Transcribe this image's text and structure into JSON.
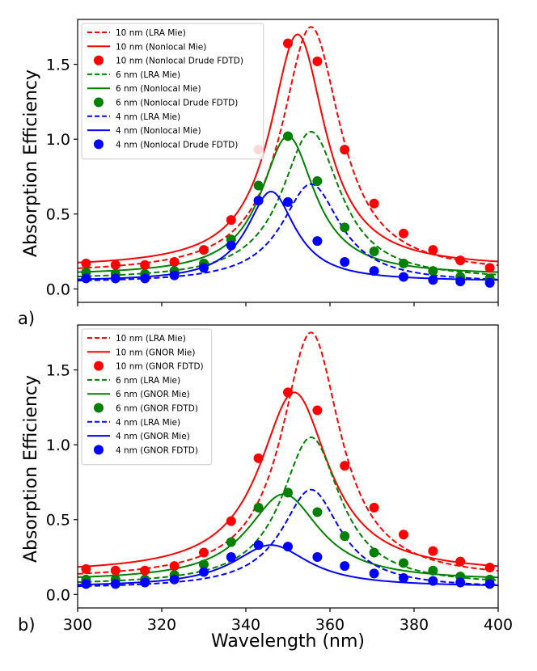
{
  "figure": {
    "xlabel": "Wavelength (nm)",
    "ylabel": "Absorption Efficiency",
    "colors": {
      "red": "#ff0000",
      "green": "#008000",
      "blue": "#0000ff",
      "legend_border": "#cccccc"
    }
  },
  "chart_data": [
    {
      "type": "line",
      "panel_label": "a)",
      "xlim": [
        300,
        400
      ],
      "ylim": [
        -0.09,
        1.8
      ],
      "xticks": [
        300,
        320,
        340,
        360,
        380,
        400
      ],
      "yticks": [
        0.0,
        0.5,
        1.0,
        1.5
      ],
      "ytick_labels": [
        "0.0",
        "0.5",
        "1.0",
        "1.5"
      ],
      "show_xtick_labels": false,
      "legend": [
        {
          "label": "10 nm (LRA Mie)",
          "color": "red",
          "style": "dashed"
        },
        {
          "label": "10 nm (Nonlocal Mie)",
          "color": "red",
          "style": "solid"
        },
        {
          "label": "10 nm (Nonlocal Drude FDTD)",
          "color": "red",
          "style": "marker"
        },
        {
          "label": "6 nm (LRA Mie)",
          "color": "green",
          "style": "dashed"
        },
        {
          "label": "6 nm (Nonlocal Mie)",
          "color": "green",
          "style": "solid"
        },
        {
          "label": "6 nm (Nonlocal Drude FDTD)",
          "color": "green",
          "style": "marker"
        },
        {
          "label": "4 nm (LRA Mie)",
          "color": "blue",
          "style": "dashed"
        },
        {
          "label": "4 nm (Nonlocal Mie)",
          "color": "blue",
          "style": "solid"
        },
        {
          "label": "4 nm (Nonlocal Drude FDTD)",
          "color": "blue",
          "style": "marker"
        }
      ],
      "series": [
        {
          "name": "10 nm (LRA Mie)",
          "color": "red",
          "style": "dashed",
          "baseline": 0.1,
          "amplitude": 1.65,
          "center": 355.5,
          "width": 8.5
        },
        {
          "name": "10 nm (Nonlocal Mie)",
          "color": "red",
          "style": "solid",
          "baseline": 0.14,
          "amplitude": 1.56,
          "center": 352.3,
          "width": 8.0
        },
        {
          "name": "10 nm (Nonlocal Drude FDTD)",
          "color": "red",
          "style": "marker",
          "x": [
            302,
            309,
            316,
            323,
            330,
            336.5,
            343,
            350,
            357,
            363.5,
            370.5,
            377.5,
            384.5,
            391,
            398
          ],
          "y": [
            0.17,
            0.16,
            0.16,
            0.18,
            0.26,
            0.46,
            0.93,
            1.64,
            1.52,
            0.93,
            0.57,
            0.37,
            0.26,
            0.19,
            0.14
          ]
        },
        {
          "name": "6 nm (LRA Mie)",
          "color": "green",
          "style": "dashed",
          "baseline": 0.06,
          "amplitude": 0.99,
          "center": 355.5,
          "width": 8.5
        },
        {
          "name": "6 nm (Nonlocal Mie)",
          "color": "green",
          "style": "solid",
          "baseline": 0.09,
          "amplitude": 0.93,
          "center": 350.0,
          "width": 7.8
        },
        {
          "name": "6 nm (Nonlocal Drude FDTD)",
          "color": "green",
          "style": "marker",
          "x": [
            302,
            309,
            316,
            323,
            330,
            336.5,
            343,
            350,
            357,
            363.5,
            370.5,
            377.5,
            384.5,
            391,
            398
          ],
          "y": [
            0.11,
            0.1,
            0.1,
            0.12,
            0.17,
            0.33,
            0.69,
            1.02,
            0.72,
            0.41,
            0.25,
            0.17,
            0.12,
            0.08,
            0.07
          ]
        },
        {
          "name": "4 nm (LRA Mie)",
          "color": "blue",
          "style": "dashed",
          "baseline": 0.04,
          "amplitude": 0.66,
          "center": 355.5,
          "width": 8.5
        },
        {
          "name": "4 nm (Nonlocal Mie)",
          "color": "blue",
          "style": "solid",
          "baseline": 0.05,
          "amplitude": 0.6,
          "center": 346.0,
          "width": 7.0
        },
        {
          "name": "4 nm (Nonlocal Drude FDTD)",
          "color": "blue",
          "style": "marker",
          "x": [
            302,
            309,
            316,
            323,
            330,
            336.5,
            343,
            350,
            357,
            363.5,
            370.5,
            377.5,
            384.5,
            391,
            398
          ],
          "y": [
            0.07,
            0.07,
            0.07,
            0.09,
            0.14,
            0.29,
            0.59,
            0.58,
            0.32,
            0.18,
            0.12,
            0.08,
            0.06,
            0.05,
            0.04
          ]
        }
      ]
    },
    {
      "type": "line",
      "panel_label": "b)",
      "xlim": [
        300,
        400
      ],
      "ylim": [
        -0.09,
        1.8
      ],
      "xticks": [
        300,
        320,
        340,
        360,
        380,
        400
      ],
      "xtick_labels": [
        "300",
        "320",
        "340",
        "360",
        "380",
        "400"
      ],
      "yticks": [
        0.0,
        0.5,
        1.0,
        1.5
      ],
      "ytick_labels": [
        "0.0",
        "0.5",
        "1.0",
        "1.5"
      ],
      "show_xtick_labels": true,
      "legend": [
        {
          "label": "10 nm (LRA Mie)",
          "color": "red",
          "style": "dashed"
        },
        {
          "label": "10 nm (GNOR Mie)",
          "color": "red",
          "style": "solid"
        },
        {
          "label": "10 nm (GNOR FDTD)",
          "color": "red",
          "style": "marker"
        },
        {
          "label": "6 nm (LRA Mie)",
          "color": "green",
          "style": "dashed"
        },
        {
          "label": "6 nm (GNOR Mie)",
          "color": "green",
          "style": "solid"
        },
        {
          "label": "6 nm (GNOR FDTD)",
          "color": "green",
          "style": "marker"
        },
        {
          "label": "4 nm (LRA Mie)",
          "color": "blue",
          "style": "dashed"
        },
        {
          "label": "4 nm (GNOR Mie)",
          "color": "blue",
          "style": "solid"
        },
        {
          "label": "4 nm (GNOR FDTD)",
          "color": "blue",
          "style": "marker"
        }
      ],
      "series": [
        {
          "name": "10 nm (LRA Mie)",
          "color": "red",
          "style": "dashed",
          "baseline": 0.1,
          "amplitude": 1.65,
          "center": 355.5,
          "width": 8.5
        },
        {
          "name": "10 nm (GNOR Mie)",
          "color": "red",
          "style": "solid",
          "baseline": 0.14,
          "amplitude": 1.21,
          "center": 351.5,
          "width": 10.0
        },
        {
          "name": "10 nm (GNOR FDTD)",
          "color": "red",
          "style": "marker",
          "x": [
            302,
            309,
            316,
            323,
            330,
            336.5,
            343,
            350,
            357,
            363.5,
            370.5,
            377.5,
            384.5,
            391,
            398
          ],
          "y": [
            0.17,
            0.16,
            0.16,
            0.19,
            0.28,
            0.49,
            0.91,
            1.35,
            1.23,
            0.86,
            0.58,
            0.4,
            0.29,
            0.22,
            0.18
          ]
        },
        {
          "name": "6 nm (LRA Mie)",
          "color": "green",
          "style": "dashed",
          "baseline": 0.06,
          "amplitude": 0.99,
          "center": 355.5,
          "width": 8.5
        },
        {
          "name": "6 nm (GNOR Mie)",
          "color": "green",
          "style": "solid",
          "baseline": 0.09,
          "amplitude": 0.58,
          "center": 349.0,
          "width": 10.5
        },
        {
          "name": "6 nm (GNOR FDTD)",
          "color": "green",
          "style": "marker",
          "x": [
            302,
            309,
            316,
            323,
            330,
            336.5,
            343,
            350,
            357,
            363.5,
            370.5,
            377.5,
            384.5,
            391,
            398
          ],
          "y": [
            0.1,
            0.1,
            0.1,
            0.13,
            0.2,
            0.35,
            0.58,
            0.68,
            0.55,
            0.39,
            0.28,
            0.21,
            0.16,
            0.12,
            0.1
          ]
        },
        {
          "name": "4 nm (LRA Mie)",
          "color": "blue",
          "style": "dashed",
          "baseline": 0.04,
          "amplitude": 0.66,
          "center": 355.5,
          "width": 8.5
        },
        {
          "name": "4 nm (GNOR Mie)",
          "color": "blue",
          "style": "solid",
          "baseline": 0.05,
          "amplitude": 0.28,
          "center": 346.0,
          "width": 11.0
        },
        {
          "name": "4 nm (GNOR FDTD)",
          "color": "blue",
          "style": "marker",
          "x": [
            302,
            309,
            316,
            323,
            330,
            336.5,
            343,
            350,
            357,
            363.5,
            370.5,
            377.5,
            384.5,
            391,
            398
          ],
          "y": [
            0.07,
            0.07,
            0.08,
            0.1,
            0.15,
            0.25,
            0.33,
            0.32,
            0.25,
            0.19,
            0.14,
            0.11,
            0.09,
            0.08,
            0.07
          ]
        }
      ]
    }
  ]
}
